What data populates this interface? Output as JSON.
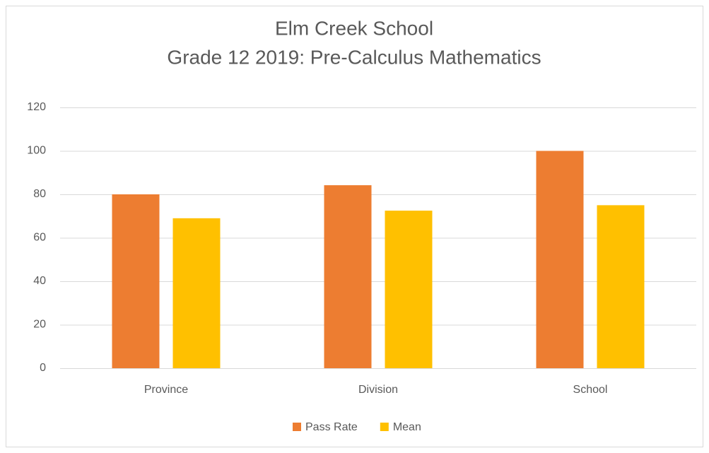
{
  "chart_data": {
    "type": "bar",
    "title": "Elm Creek School",
    "subtitle": "Grade 12 2019: Pre-Calculus Mathematics",
    "categories": [
      "Province",
      "Division",
      "School"
    ],
    "series": [
      {
        "name": "Pass Rate",
        "color": "#ed7d31",
        "values": [
          80,
          84.2,
          100
        ]
      },
      {
        "name": "Mean",
        "color": "#ffc000",
        "values": [
          69,
          72.5,
          75
        ]
      }
    ],
    "ylim": [
      0,
      120
    ],
    "yticks": [
      0,
      20,
      40,
      60,
      80,
      100,
      120
    ],
    "grid": true,
    "legend": "bottom"
  }
}
